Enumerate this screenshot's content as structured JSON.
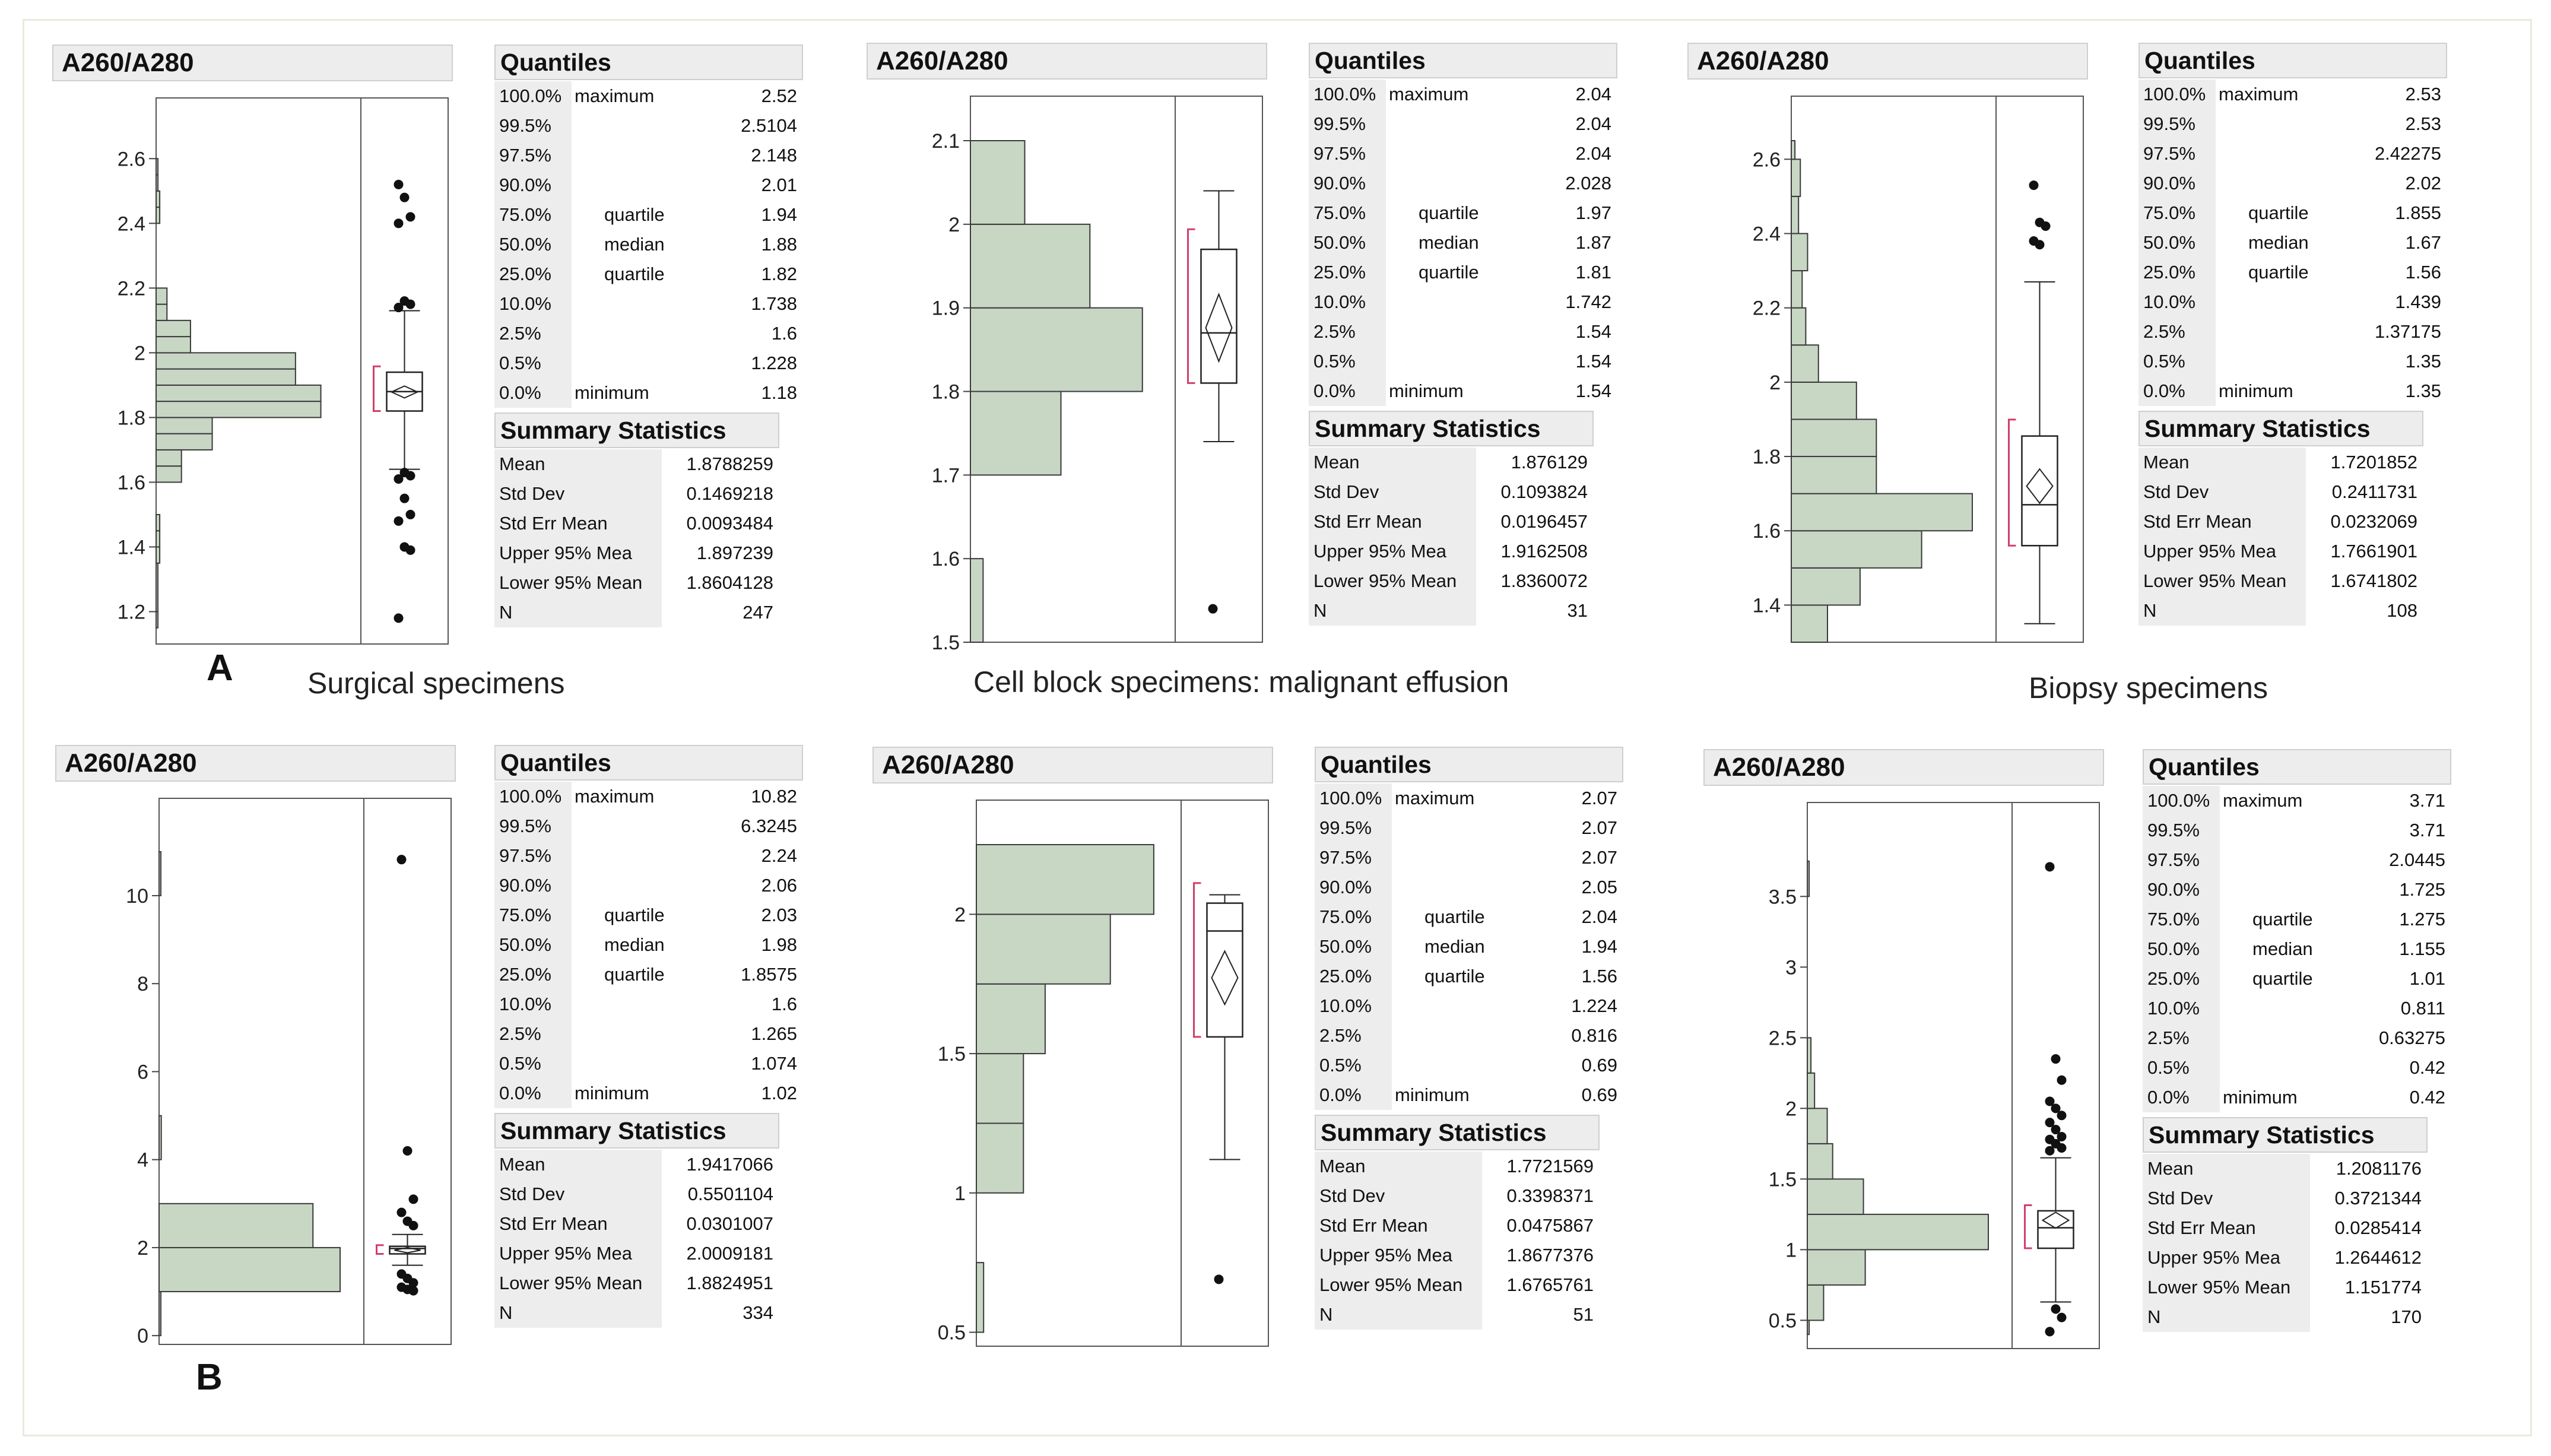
{
  "panel_letters": {
    "A": "A",
    "B": "B"
  },
  "captions": {
    "surgical": "Surgical specimens",
    "cell_block": "Cell block specimens: malignant effusion",
    "biopsy": "Biopsy specimens"
  },
  "colors": {
    "bar_fill": "#c8d7c4",
    "bar_stroke": "#3a3a3a",
    "ci_bracket": "#d0406a",
    "header_bg": "#ededed"
  },
  "table_titles": {
    "quantiles": "Quantiles",
    "summary": "Summary Statistics"
  },
  "quantile_levels": [
    "100.0%",
    "99.5%",
    "97.5%",
    "90.0%",
    "75.0%",
    "50.0%",
    "25.0%",
    "10.0%",
    "2.5%",
    "0.5%",
    "0.0%"
  ],
  "quantile_descs": [
    "maximum",
    "",
    "",
    "",
    "quartile",
    "median",
    "quartile",
    "",
    "",
    "",
    "minimum"
  ],
  "summary_labels": [
    "Mean",
    "Std Dev",
    "Std Err Mean",
    "Upper 95% Mea",
    "Lower 95% Mean",
    "N"
  ],
  "chart_data": [
    {
      "type": "histogram",
      "title": "A260/A280",
      "ylim": [
        1.1,
        2.65
      ],
      "yticks": [
        1.2,
        1.4,
        1.6,
        1.8,
        2.0,
        2.2,
        2.4,
        2.6
      ],
      "ytick_labels": [
        "1.2",
        "1.4",
        "1.6",
        "1.8",
        "2",
        "2.2",
        "2.4",
        "2.6"
      ],
      "bins": [
        [
          1.15,
          1.2,
          0.01
        ],
        [
          1.2,
          1.35,
          0
        ],
        [
          1.35,
          1.4,
          0.02
        ],
        [
          1.4,
          1.45,
          0.02
        ],
        [
          1.45,
          1.5,
          0.02
        ],
        [
          1.6,
          1.65,
          0.14
        ],
        [
          1.65,
          1.7,
          0.14
        ],
        [
          1.7,
          1.75,
          0.31
        ],
        [
          1.75,
          1.8,
          0.31
        ],
        [
          1.8,
          1.85,
          0.91
        ],
        [
          1.85,
          1.9,
          0.91
        ],
        [
          1.9,
          1.95,
          0.77
        ],
        [
          1.95,
          2.0,
          0.77
        ],
        [
          2.0,
          2.05,
          0.19
        ],
        [
          2.05,
          2.1,
          0.19
        ],
        [
          2.1,
          2.15,
          0.06
        ],
        [
          2.15,
          2.2,
          0.06
        ],
        [
          2.4,
          2.45,
          0.02
        ],
        [
          2.45,
          2.5,
          0.02
        ],
        [
          2.5,
          2.55,
          0.01
        ],
        [
          2.55,
          2.6,
          0.01
        ]
      ],
      "box": {
        "q1": 1.82,
        "median": 1.88,
        "q3": 1.94,
        "whisker_low": 1.64,
        "whisker_high": 2.13,
        "mean": 1.8788259,
        "ci": [
          1.8604128,
          1.897239
        ],
        "sd": 0.1469218
      },
      "outliers": [
        2.52,
        2.48,
        2.42,
        2.4,
        2.16,
        2.15,
        2.14,
        1.63,
        1.62,
        1.61,
        1.55,
        1.5,
        1.48,
        1.4,
        1.39,
        1.18
      ],
      "quantiles": [
        "2.52",
        "2.5104",
        "2.148",
        "2.01",
        "1.94",
        "1.88",
        "1.82",
        "1.738",
        "1.6",
        "1.228",
        "1.18"
      ],
      "summary": [
        "1.8788259",
        "0.1469218",
        "0.0093484",
        "1.897239",
        "1.8604128",
        "247"
      ]
    },
    {
      "type": "histogram",
      "title": "A260/A280",
      "ylim": [
        1.5,
        2.1
      ],
      "yticks": [
        1.5,
        1.6,
        1.7,
        1.8,
        1.9,
        2.0,
        2.1
      ],
      "ytick_labels": [
        "1.5",
        "1.6",
        "1.7",
        "1.8",
        "1.9",
        "2",
        "2.1"
      ],
      "bins": [
        [
          1.5,
          1.6,
          0.07
        ],
        [
          1.7,
          1.8,
          0.5
        ],
        [
          1.8,
          1.9,
          0.95
        ],
        [
          1.9,
          2.0,
          0.66
        ],
        [
          2.0,
          2.1,
          0.3
        ]
      ],
      "box": {
        "q1": 1.81,
        "median": 1.87,
        "q3": 1.97,
        "whisker_low": 1.74,
        "whisker_high": 2.04,
        "mean": 1.876129,
        "ci": [
          1.8360072,
          1.9162508
        ],
        "sd": 0.1093824
      },
      "outliers": [
        1.54
      ],
      "quantiles": [
        "2.04",
        "2.04",
        "2.04",
        "2.028",
        "1.97",
        "1.87",
        "1.81",
        "1.742",
        "1.54",
        "1.54",
        "1.54"
      ],
      "summary": [
        "1.876129",
        "0.1093824",
        "0.0196457",
        "1.9162508",
        "1.8360072",
        "31"
      ]
    },
    {
      "type": "histogram",
      "title": "A260/A280",
      "ylim": [
        1.3,
        2.65
      ],
      "yticks": [
        1.4,
        1.6,
        1.8,
        2.0,
        2.2,
        2.4,
        2.6
      ],
      "ytick_labels": [
        "1.4",
        "1.6",
        "1.8",
        "2",
        "2.2",
        "2.4",
        "2.6"
      ],
      "bins": [
        [
          1.3,
          1.4,
          0.2
        ],
        [
          1.4,
          1.5,
          0.38
        ],
        [
          1.5,
          1.6,
          0.72
        ],
        [
          1.6,
          1.7,
          1.0
        ],
        [
          1.7,
          1.8,
          0.47
        ],
        [
          1.8,
          1.9,
          0.47
        ],
        [
          1.9,
          2.0,
          0.36
        ],
        [
          2.0,
          2.1,
          0.15
        ],
        [
          2.1,
          2.2,
          0.08
        ],
        [
          2.2,
          2.3,
          0.06
        ],
        [
          2.3,
          2.4,
          0.09
        ],
        [
          2.4,
          2.5,
          0.04
        ],
        [
          2.5,
          2.6,
          0.05
        ],
        [
          2.6,
          2.65,
          0.02
        ]
      ],
      "box": {
        "q1": 1.56,
        "median": 1.67,
        "q3": 1.855,
        "whisker_low": 1.35,
        "whisker_high": 2.27,
        "mean": 1.7201852,
        "ci": [
          1.6741802,
          1.7661901
        ],
        "sd": 0.2411731
      },
      "outliers": [
        2.53,
        2.43,
        2.42,
        2.38,
        2.37
      ],
      "quantiles": [
        "2.53",
        "2.53",
        "2.42275",
        "2.02",
        "1.855",
        "1.67",
        "1.56",
        "1.439",
        "1.37175",
        "1.35",
        "1.35"
      ],
      "summary": [
        "1.7201852",
        "0.2411731",
        "0.0232069",
        "1.7661901",
        "1.6741802",
        "108"
      ]
    },
    {
      "type": "histogram",
      "title": "A260/A280",
      "ylim": [
        -0.2,
        11.2
      ],
      "yticks": [
        0,
        2,
        4,
        6,
        8,
        10
      ],
      "ytick_labels": [
        "0",
        "2",
        "4",
        "6",
        "8",
        "10"
      ],
      "bins": [
        [
          0,
          1,
          0.0
        ],
        [
          1,
          2,
          1.0
        ],
        [
          2,
          3,
          0.85
        ],
        [
          4,
          5,
          0.012
        ],
        [
          10,
          11,
          0.005
        ]
      ],
      "box": {
        "q1": 1.8575,
        "median": 1.98,
        "q3": 2.03,
        "whisker_low": 1.6,
        "whisker_high": 2.3,
        "mean": 1.9417066,
        "ci": [
          1.8824951,
          2.0009181
        ],
        "sd": 0.5501104
      },
      "outliers": [
        10.82,
        4.2,
        3.1,
        2.8,
        2.6,
        2.5,
        1.4,
        1.3,
        1.2,
        1.1,
        1.05,
        1.02
      ],
      "quantiles": [
        "10.82",
        "6.3245",
        "2.24",
        "2.06",
        "2.03",
        "1.98",
        "1.8575",
        "1.6",
        "1.265",
        "1.074",
        "1.02"
      ],
      "summary": [
        "1.9417066",
        "0.5501104",
        "0.0301007",
        "2.0009181",
        "1.8824951",
        "334"
      ]
    },
    {
      "type": "histogram",
      "title": "A260/A280",
      "ylim": [
        0.45,
        2.25
      ],
      "yticks": [
        0.5,
        1.0,
        1.5,
        2.0
      ],
      "ytick_labels": [
        "0.5",
        "1",
        "1.5",
        "2"
      ],
      "bins": [
        [
          0.5,
          0.75,
          0.04
        ],
        [
          1.0,
          1.25,
          0.26
        ],
        [
          1.25,
          1.5,
          0.26
        ],
        [
          1.5,
          1.75,
          0.38
        ],
        [
          1.75,
          2.0,
          0.74
        ],
        [
          2.0,
          2.25,
          0.98
        ]
      ],
      "box": {
        "q1": 1.56,
        "median": 1.94,
        "q3": 2.04,
        "whisker_low": 1.12,
        "whisker_high": 2.07,
        "mean": 1.7721569,
        "ci": [
          1.6765761,
          1.8677376
        ],
        "sd": 0.3398371
      },
      "outliers": [
        0.69
      ],
      "quantiles": [
        "2.07",
        "2.07",
        "2.07",
        "2.05",
        "2.04",
        "1.94",
        "1.56",
        "1.224",
        "0.816",
        "0.69",
        "0.69"
      ],
      "summary": [
        "1.7721569",
        "0.3398371",
        "0.0475867",
        "1.8677376",
        "1.6765761",
        "51"
      ]
    },
    {
      "type": "histogram",
      "title": "A260/A280",
      "ylim": [
        0.3,
        3.85
      ],
      "yticks": [
        0.5,
        1.0,
        1.5,
        2.0,
        2.5,
        3.0,
        3.5
      ],
      "ytick_labels": [
        "0.5",
        "1",
        "1.5",
        "2",
        "2.5",
        "3",
        "3.5"
      ],
      "bins": [
        [
          0.4,
          0.5,
          0.01
        ],
        [
          0.5,
          0.75,
          0.09
        ],
        [
          0.75,
          1.0,
          0.32
        ],
        [
          1.0,
          1.25,
          1.0
        ],
        [
          1.25,
          1.5,
          0.31
        ],
        [
          1.5,
          1.75,
          0.14
        ],
        [
          1.75,
          2.0,
          0.11
        ],
        [
          2.0,
          2.25,
          0.04
        ],
        [
          2.25,
          2.5,
          0.02
        ],
        [
          3.5,
          3.75,
          0.005
        ]
      ],
      "box": {
        "q1": 1.01,
        "median": 1.155,
        "q3": 1.275,
        "whisker_low": 0.63,
        "whisker_high": 1.65,
        "mean": 1.2081176,
        "ci": [
          1.151774,
          1.2644612
        ],
        "sd": 0.3721344
      },
      "outliers": [
        3.71,
        2.35,
        2.2,
        2.05,
        2.0,
        1.95,
        1.9,
        1.85,
        1.8,
        1.78,
        1.75,
        1.72,
        1.7,
        0.58,
        0.52,
        0.42
      ],
      "quantiles": [
        "3.71",
        "3.71",
        "2.0445",
        "1.725",
        "1.275",
        "1.155",
        "1.01",
        "0.811",
        "0.63275",
        "0.42",
        "0.42"
      ],
      "summary": [
        "1.2081176",
        "0.3721344",
        "0.0285414",
        "1.2644612",
        "1.151774",
        "170"
      ]
    }
  ]
}
